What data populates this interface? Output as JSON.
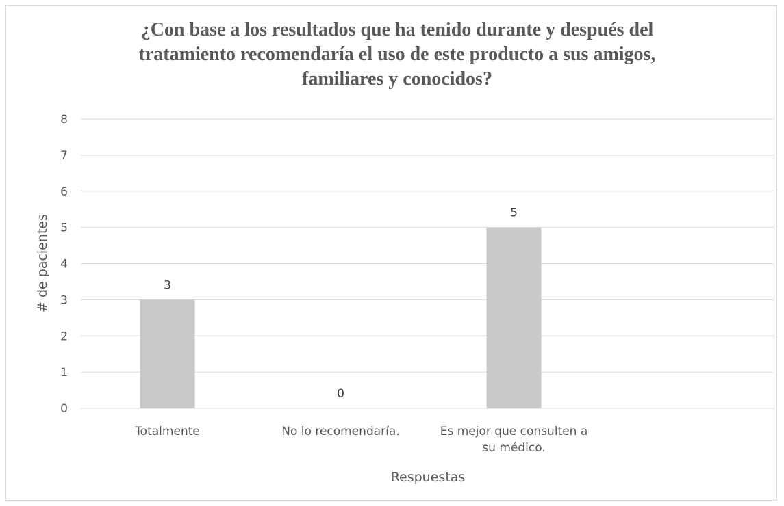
{
  "chart_data": {
    "type": "bar",
    "title_lines": [
      "¿Con base a los resultados que ha tenido durante y después del",
      "tratamiento recomendaría el uso de este producto a sus amigos,",
      "familiares y conocidos?"
    ],
    "categories": [
      [
        "Totalmente"
      ],
      [
        "No lo recomendaría."
      ],
      [
        "Es mejor que consulten a",
        "su médico."
      ]
    ],
    "values": [
      3,
      0,
      5
    ],
    "data_labels": [
      "3",
      "0",
      "5"
    ],
    "xlabel": "Respuestas",
    "ylabel": "# de pacientes",
    "ylim": [
      0,
      8
    ],
    "yticks": [
      "0",
      "1",
      "2",
      "3",
      "4",
      "5",
      "6",
      "7",
      "8"
    ],
    "grid": true,
    "bar_color": "#c8c8c8",
    "grid_color": "#d9d9d9"
  }
}
